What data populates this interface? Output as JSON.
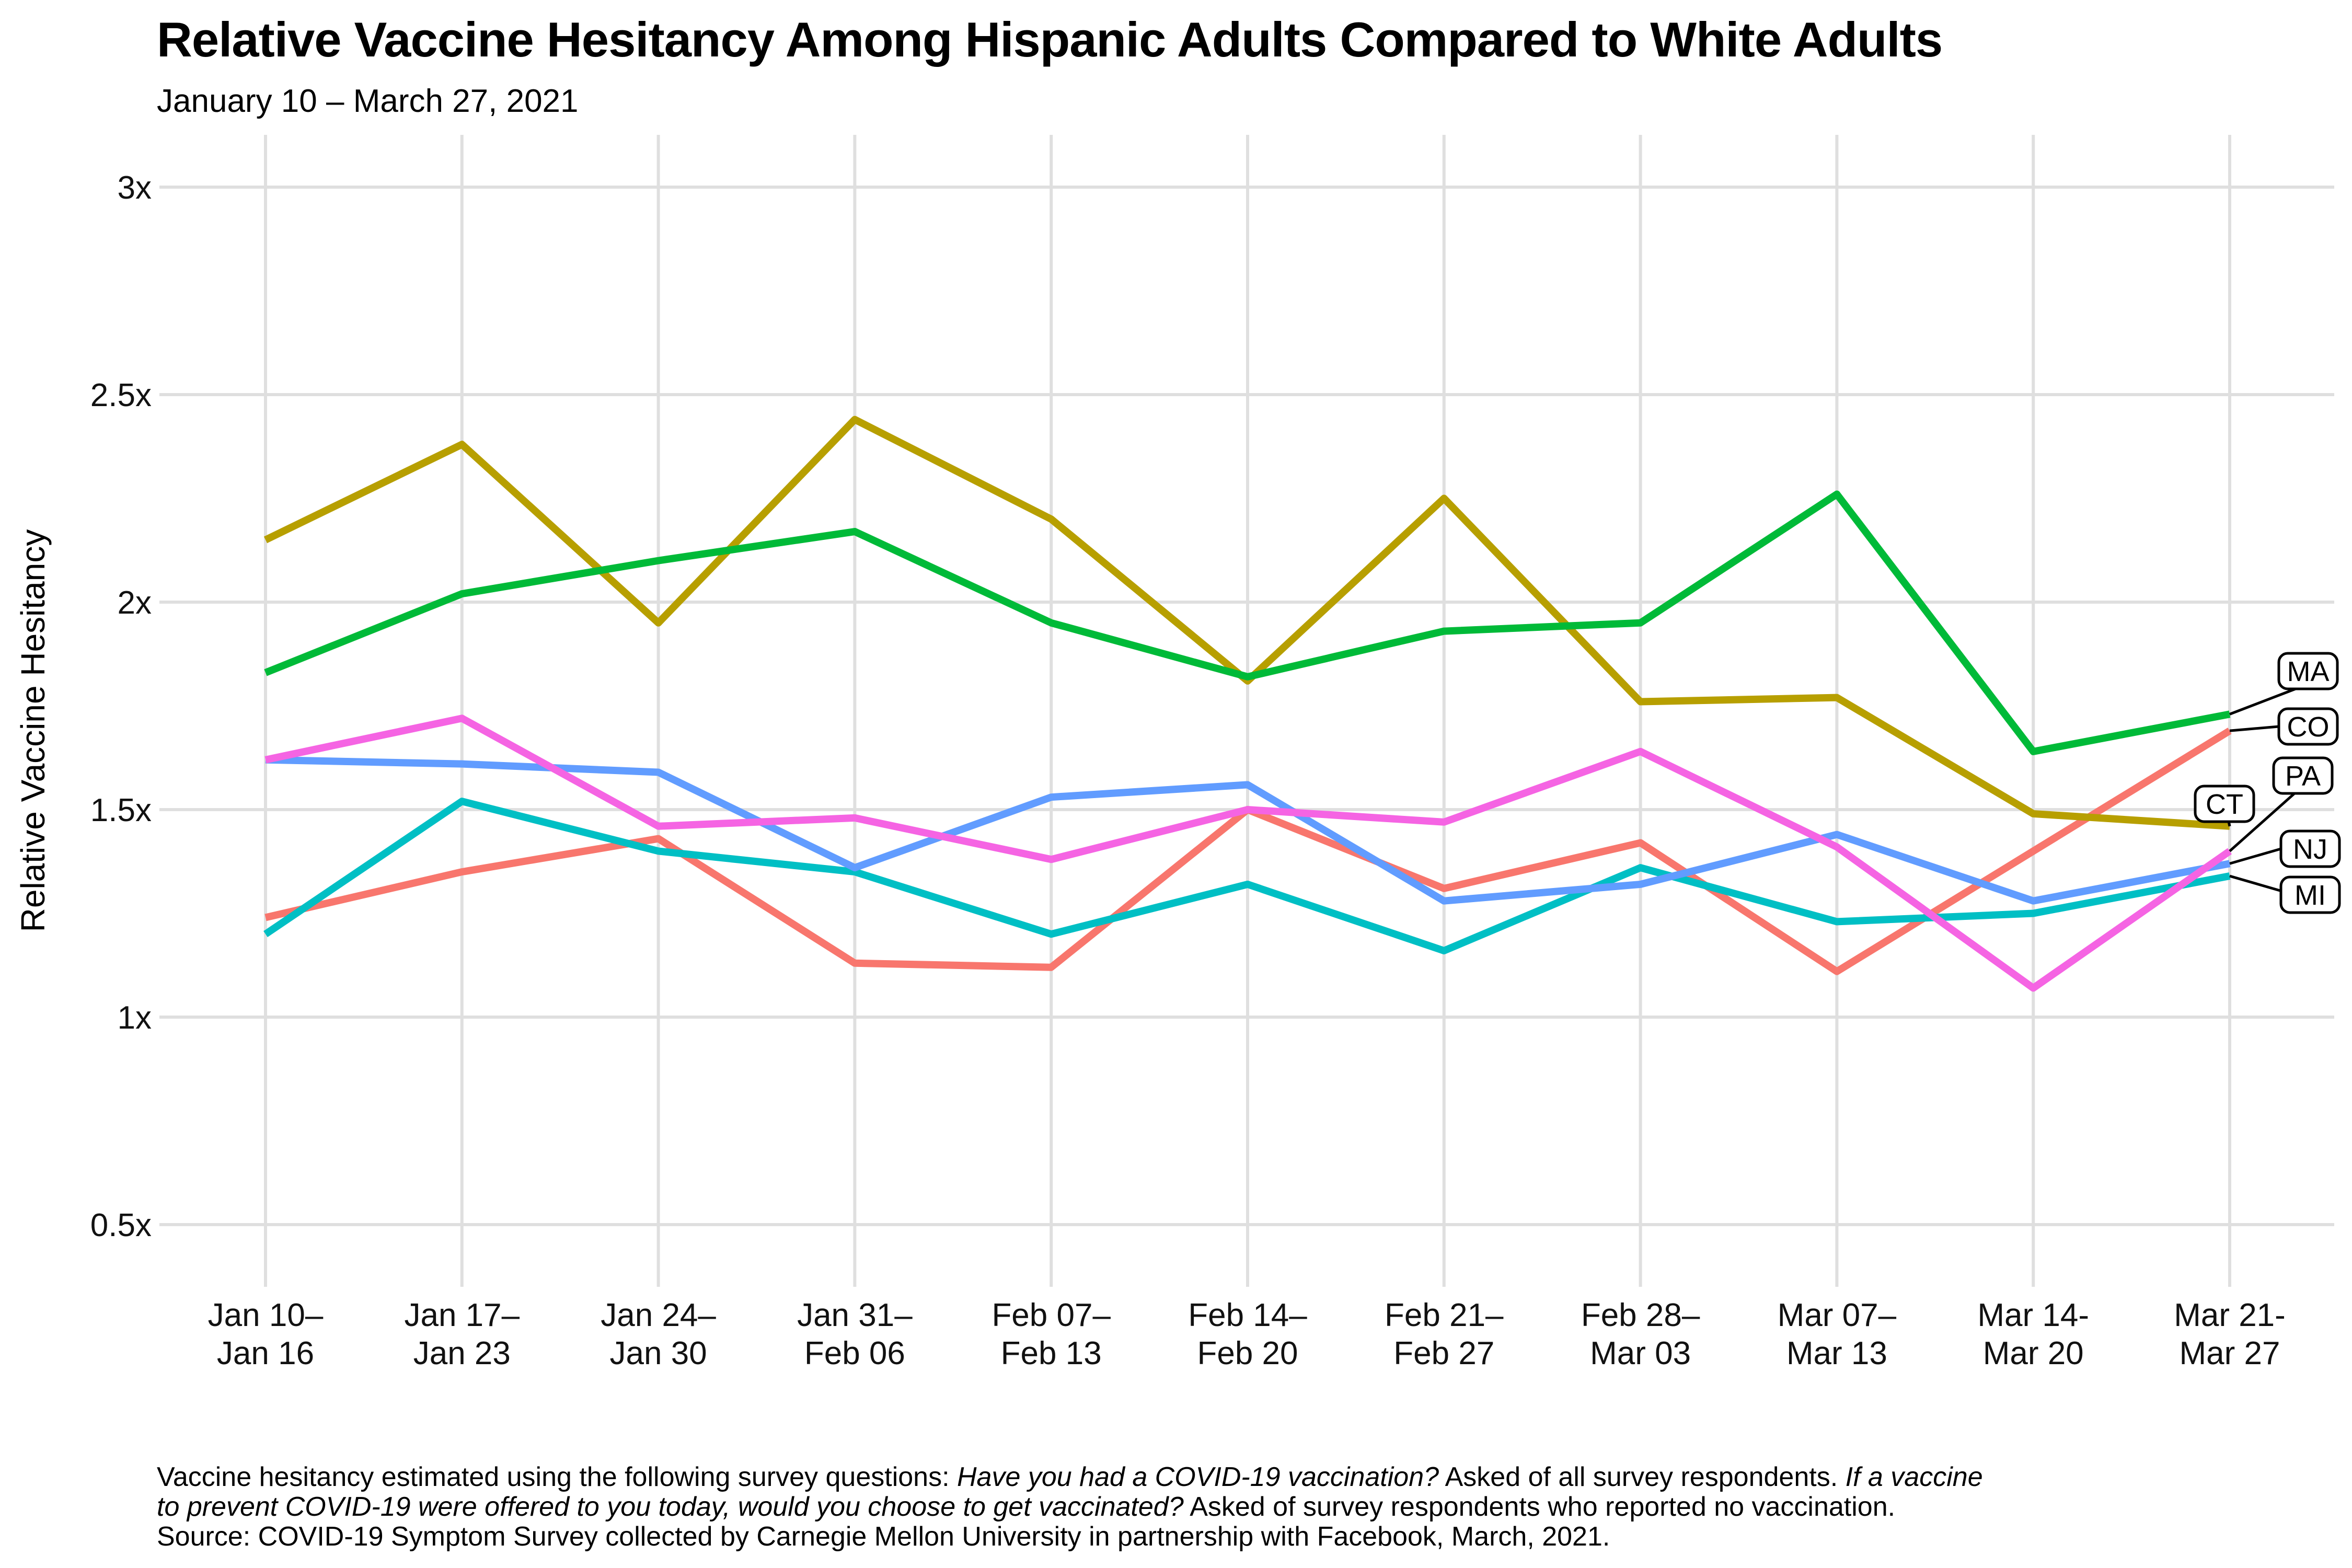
{
  "header": {
    "title": "Relative Vaccine Hesitancy Among Hispanic Adults Compared to White Adults",
    "subtitle": "January 10 – March 27, 2021"
  },
  "chart_data": {
    "type": "line",
    "title": "Relative Vaccine Hesitancy Among Hispanic Adults Compared to White Adults",
    "subtitle": "January 10 – March 27, 2021",
    "xlabel": "",
    "ylabel": "Relative Vaccine Hesitancy",
    "ylim": [
      0.5,
      3
    ],
    "yticks": [
      0.5,
      1,
      1.5,
      2,
      2.5,
      3
    ],
    "ytick_labels": [
      "0.5x",
      "1x",
      "1.5x",
      "2x",
      "2.5x",
      "3x"
    ],
    "grid": true,
    "legend_position": "right-end-labels",
    "categories": [
      [
        "Jan 10–",
        "Jan 16"
      ],
      [
        "Jan 17–",
        "Jan 23"
      ],
      [
        "Jan 24–",
        "Jan 30"
      ],
      [
        "Jan 31–",
        "Feb 06"
      ],
      [
        "Feb 07–",
        "Feb 13"
      ],
      [
        "Feb 14–",
        "Feb 20"
      ],
      [
        "Feb 21–",
        "Feb 27"
      ],
      [
        "Feb 28–",
        "Mar 03"
      ],
      [
        "Mar 07–",
        "Mar 13"
      ],
      [
        "Mar 14-",
        "Mar 20"
      ],
      [
        "Mar 21-",
        "Mar 27"
      ]
    ],
    "series": [
      {
        "name": "CO",
        "color": "#F8766D",
        "values": [
          1.24,
          1.35,
          1.43,
          1.13,
          1.12,
          1.5,
          1.31,
          1.42,
          1.11,
          1.4,
          1.69
        ]
      },
      {
        "name": "CT",
        "color": "#B79F00",
        "values": [
          2.15,
          2.38,
          1.95,
          2.44,
          2.2,
          1.81,
          2.25,
          1.76,
          1.77,
          1.49,
          1.46
        ]
      },
      {
        "name": "MA",
        "color": "#00BA38",
        "values": [
          1.83,
          2.02,
          2.1,
          2.17,
          1.95,
          1.82,
          1.93,
          1.95,
          2.26,
          1.64,
          1.73
        ]
      },
      {
        "name": "MI",
        "color": "#00BFC4",
        "values": [
          1.2,
          1.52,
          1.4,
          1.35,
          1.2,
          1.32,
          1.16,
          1.36,
          1.23,
          1.25,
          1.34
        ]
      },
      {
        "name": "NJ",
        "color": "#619CFF",
        "values": [
          1.62,
          1.61,
          1.59,
          1.36,
          1.53,
          1.56,
          1.28,
          1.32,
          1.44,
          1.28,
          1.37
        ]
      },
      {
        "name": "PA",
        "color": "#F564E3",
        "values": [
          1.62,
          1.72,
          1.46,
          1.48,
          1.38,
          1.5,
          1.47,
          1.64,
          1.41,
          1.07,
          1.4
        ]
      }
    ]
  },
  "footnote": {
    "lines": [
      [
        {
          "text": "Vaccine hesitancy estimated using the following survey questions: ",
          "italic": false
        },
        {
          "text": "Have you had a COVID-19 vaccination?",
          "italic": true
        },
        {
          "text": " Asked of all survey respondents. ",
          "italic": false
        },
        {
          "text": "If a vaccine",
          "italic": true
        }
      ],
      [
        {
          "text": "to prevent COVID-19 were offered to you today, would you choose to get vaccinated?",
          "italic": true
        },
        {
          "text": " Asked of survey respondents who reported no vaccination.",
          "italic": false
        }
      ],
      [
        {
          "text": "Source: COVID-19 Symptom Survey collected by Carnegie Mellon University in partnership with Facebook, March, 2021.",
          "italic": false
        }
      ]
    ]
  }
}
